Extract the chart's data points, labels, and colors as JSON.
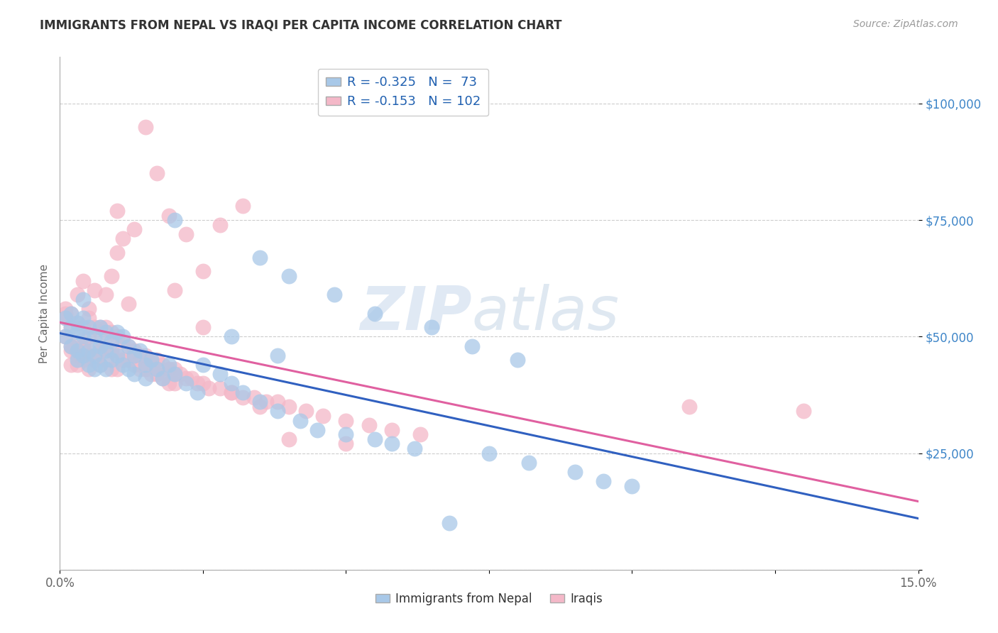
{
  "title": "IMMIGRANTS FROM NEPAL VS IRAQI PER CAPITA INCOME CORRELATION CHART",
  "source": "Source: ZipAtlas.com",
  "ylabel_label": "Per Capita Income",
  "xlim": [
    0.0,
    0.15
  ],
  "ylim": [
    0,
    110000
  ],
  "xticks": [
    0.0,
    0.025,
    0.05,
    0.075,
    0.1,
    0.125,
    0.15
  ],
  "xtick_labels_show": [
    "0.0%",
    "",
    "",
    "",
    "",
    "",
    "15.0%"
  ],
  "ytick_positions": [
    0,
    25000,
    50000,
    75000,
    100000
  ],
  "ytick_labels": [
    "",
    "$25,000",
    "$50,000",
    "$75,000",
    "$100,000"
  ],
  "nepal_color": "#a8c8e8",
  "iraqi_color": "#f4b8c8",
  "nepal_R": -0.325,
  "nepal_N": 73,
  "iraqi_R": -0.153,
  "iraqi_N": 102,
  "nepal_line_color": "#3060c0",
  "iraqi_line_color": "#e060a0",
  "legend_label_nepal": "Immigrants from Nepal",
  "legend_label_iraqi": "Iraqis",
  "watermark_zip": "ZIP",
  "watermark_atlas": "atlas",
  "background_color": "#ffffff",
  "grid_color": "#cccccc",
  "title_color": "#333333",
  "axis_label_color": "#666666",
  "ytick_color": "#3d85c8",
  "xtick_color": "#666666",
  "nepal_scatter_x": [
    0.001,
    0.001,
    0.002,
    0.002,
    0.002,
    0.003,
    0.003,
    0.003,
    0.003,
    0.004,
    0.004,
    0.004,
    0.004,
    0.005,
    0.005,
    0.005,
    0.006,
    0.006,
    0.006,
    0.007,
    0.007,
    0.007,
    0.008,
    0.008,
    0.008,
    0.009,
    0.009,
    0.01,
    0.01,
    0.011,
    0.011,
    0.012,
    0.012,
    0.013,
    0.013,
    0.014,
    0.015,
    0.015,
    0.016,
    0.017,
    0.018,
    0.019,
    0.02,
    0.022,
    0.024,
    0.025,
    0.028,
    0.03,
    0.032,
    0.035,
    0.038,
    0.042,
    0.045,
    0.05,
    0.055,
    0.058,
    0.062,
    0.068,
    0.075,
    0.082,
    0.09,
    0.095,
    0.1,
    0.035,
    0.04,
    0.048,
    0.055,
    0.065,
    0.072,
    0.08,
    0.02,
    0.03,
    0.038
  ],
  "nepal_scatter_y": [
    54000,
    50000,
    52000,
    48000,
    55000,
    53000,
    47000,
    51000,
    45000,
    54000,
    50000,
    46000,
    58000,
    52000,
    47000,
    44000,
    50000,
    46000,
    43000,
    52000,
    48000,
    44000,
    51000,
    47000,
    43000,
    49000,
    45000,
    51000,
    46000,
    50000,
    44000,
    48000,
    43000,
    46000,
    42000,
    47000,
    44000,
    41000,
    45000,
    43000,
    41000,
    44000,
    42000,
    40000,
    38000,
    44000,
    42000,
    40000,
    38000,
    36000,
    34000,
    32000,
    30000,
    29000,
    28000,
    27000,
    26000,
    10000,
    25000,
    23000,
    21000,
    19000,
    18000,
    67000,
    63000,
    59000,
    55000,
    52000,
    48000,
    45000,
    75000,
    50000,
    46000
  ],
  "iraqi_scatter_x": [
    0.001,
    0.001,
    0.001,
    0.002,
    0.002,
    0.002,
    0.002,
    0.003,
    0.003,
    0.003,
    0.003,
    0.004,
    0.004,
    0.004,
    0.004,
    0.005,
    0.005,
    0.005,
    0.005,
    0.006,
    0.006,
    0.006,
    0.007,
    0.007,
    0.007,
    0.008,
    0.008,
    0.008,
    0.009,
    0.009,
    0.009,
    0.01,
    0.01,
    0.01,
    0.011,
    0.011,
    0.012,
    0.012,
    0.013,
    0.013,
    0.014,
    0.014,
    0.015,
    0.015,
    0.016,
    0.016,
    0.017,
    0.017,
    0.018,
    0.018,
    0.019,
    0.019,
    0.02,
    0.02,
    0.021,
    0.022,
    0.023,
    0.024,
    0.025,
    0.026,
    0.028,
    0.03,
    0.032,
    0.034,
    0.036,
    0.038,
    0.04,
    0.043,
    0.046,
    0.05,
    0.054,
    0.058,
    0.063,
    0.001,
    0.002,
    0.003,
    0.004,
    0.005,
    0.006,
    0.007,
    0.008,
    0.009,
    0.01,
    0.011,
    0.012,
    0.013,
    0.015,
    0.017,
    0.019,
    0.022,
    0.025,
    0.028,
    0.032,
    0.025,
    0.03,
    0.035,
    0.04,
    0.05,
    0.11,
    0.13,
    0.02,
    0.01
  ],
  "iraqi_scatter_y": [
    54000,
    50000,
    56000,
    52000,
    48000,
    55000,
    44000,
    53000,
    49000,
    46000,
    59000,
    52000,
    48000,
    45000,
    62000,
    54000,
    50000,
    46000,
    43000,
    52000,
    48000,
    45000,
    51000,
    47000,
    44000,
    52000,
    48000,
    45000,
    51000,
    47000,
    43000,
    50000,
    46000,
    43000,
    49000,
    45000,
    48000,
    45000,
    47000,
    44000,
    46000,
    43000,
    46000,
    43000,
    45000,
    42000,
    45000,
    42000,
    44000,
    41000,
    43000,
    40000,
    43000,
    40000,
    42000,
    41000,
    41000,
    40000,
    40000,
    39000,
    39000,
    38000,
    37000,
    37000,
    36000,
    36000,
    35000,
    34000,
    33000,
    32000,
    31000,
    30000,
    29000,
    55000,
    47000,
    44000,
    47000,
    56000,
    60000,
    52000,
    59000,
    63000,
    77000,
    71000,
    57000,
    73000,
    95000,
    85000,
    76000,
    72000,
    64000,
    74000,
    78000,
    52000,
    38000,
    35000,
    28000,
    27000,
    35000,
    34000,
    60000,
    68000
  ]
}
